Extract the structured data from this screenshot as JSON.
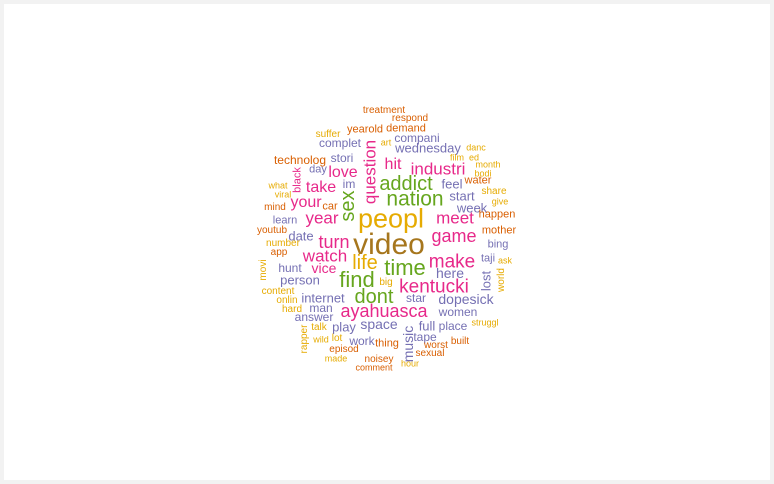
{
  "colors": {
    "orange": "#d95f02",
    "purple": "#7570b3",
    "pink": "#e7298a",
    "green": "#66a61e",
    "gold": "#e6ab02",
    "brown": "#a6761d"
  },
  "words": [
    {
      "text": "treatment",
      "color": "#d95f02"
    },
    {
      "text": "respond",
      "color": "#d95f02"
    },
    {
      "text": "yearold",
      "color": "#d95f02"
    },
    {
      "text": "demand",
      "color": "#d95f02"
    },
    {
      "text": "suffer",
      "color": "#e6ab02"
    },
    {
      "text": "compani",
      "color": "#7570b3"
    },
    {
      "text": "complet",
      "color": "#7570b3"
    },
    {
      "text": "art",
      "color": "#e6ab02"
    },
    {
      "text": "wednesday",
      "color": "#7570b3"
    },
    {
      "text": "danc",
      "color": "#e6ab02"
    },
    {
      "text": "technolog",
      "color": "#d95f02"
    },
    {
      "text": "stori",
      "color": "#7570b3"
    },
    {
      "text": "question",
      "color": "#e7298a"
    },
    {
      "text": "hit",
      "color": "#e7298a"
    },
    {
      "text": "film",
      "color": "#e6ab02"
    },
    {
      "text": "ed",
      "color": "#e6ab02"
    },
    {
      "text": "month",
      "color": "#e6ab02"
    },
    {
      "text": "day",
      "color": "#7570b3"
    },
    {
      "text": "black",
      "color": "#e7298a"
    },
    {
      "text": "love",
      "color": "#e7298a"
    },
    {
      "text": "industri",
      "color": "#e7298a"
    },
    {
      "text": "bodi",
      "color": "#e6ab02"
    },
    {
      "text": "what",
      "color": "#e6ab02"
    },
    {
      "text": "take",
      "color": "#e7298a"
    },
    {
      "text": "im",
      "color": "#7570b3"
    },
    {
      "text": "addict",
      "color": "#66a61e"
    },
    {
      "text": "feel",
      "color": "#7570b3"
    },
    {
      "text": "water",
      "color": "#d95f02"
    },
    {
      "text": "viral",
      "color": "#e6ab02"
    },
    {
      "text": "share",
      "color": "#e6ab02"
    },
    {
      "text": "your",
      "color": "#e7298a"
    },
    {
      "text": "car",
      "color": "#d95f02"
    },
    {
      "text": "sex",
      "color": "#66a61e"
    },
    {
      "text": "nation",
      "color": "#66a61e"
    },
    {
      "text": "start",
      "color": "#7570b3"
    },
    {
      "text": "give",
      "color": "#e6ab02"
    },
    {
      "text": "mind",
      "color": "#d95f02"
    },
    {
      "text": "week",
      "color": "#7570b3"
    },
    {
      "text": "happen",
      "color": "#d95f02"
    },
    {
      "text": "year",
      "color": "#e7298a"
    },
    {
      "text": "peopl",
      "color": "#e6ab02"
    },
    {
      "text": "meet",
      "color": "#e7298a"
    },
    {
      "text": "learn",
      "color": "#7570b3"
    },
    {
      "text": "youtub",
      "color": "#d95f02"
    },
    {
      "text": "mother",
      "color": "#d95f02"
    },
    {
      "text": "date",
      "color": "#7570b3"
    },
    {
      "text": "turn",
      "color": "#e7298a"
    },
    {
      "text": "game",
      "color": "#e7298a"
    },
    {
      "text": "number",
      "color": "#e6ab02"
    },
    {
      "text": "video",
      "color": "#a6761d"
    },
    {
      "text": "bing",
      "color": "#7570b3"
    },
    {
      "text": "app",
      "color": "#d95f02"
    },
    {
      "text": "watch",
      "color": "#e7298a"
    },
    {
      "text": "life",
      "color": "#e6ab02"
    },
    {
      "text": "taji",
      "color": "#7570b3"
    },
    {
      "text": "ask",
      "color": "#e6ab02"
    },
    {
      "text": "movi",
      "color": "#e6ab02"
    },
    {
      "text": "hunt",
      "color": "#7570b3"
    },
    {
      "text": "vice",
      "color": "#e7298a"
    },
    {
      "text": "time",
      "color": "#66a61e"
    },
    {
      "text": "make",
      "color": "#e7298a"
    },
    {
      "text": "here",
      "color": "#7570b3"
    },
    {
      "text": "lost",
      "color": "#7570b3"
    },
    {
      "text": "world",
      "color": "#e6ab02"
    },
    {
      "text": "person",
      "color": "#7570b3"
    },
    {
      "text": "find",
      "color": "#66a61e"
    },
    {
      "text": "big",
      "color": "#e6ab02"
    },
    {
      "text": "kentucki",
      "color": "#e7298a"
    },
    {
      "text": "content",
      "color": "#e6ab02"
    },
    {
      "text": "internet",
      "color": "#7570b3"
    },
    {
      "text": "dont",
      "color": "#66a61e"
    },
    {
      "text": "star",
      "color": "#7570b3"
    },
    {
      "text": "dopesick",
      "color": "#7570b3"
    },
    {
      "text": "onlin",
      "color": "#e6ab02"
    },
    {
      "text": "man",
      "color": "#7570b3"
    },
    {
      "text": "hard",
      "color": "#e6ab02"
    },
    {
      "text": "ayahuasca",
      "color": "#e7298a"
    },
    {
      "text": "women",
      "color": "#7570b3"
    },
    {
      "text": "answer",
      "color": "#7570b3"
    },
    {
      "text": "struggl",
      "color": "#e6ab02"
    },
    {
      "text": "talk",
      "color": "#e6ab02"
    },
    {
      "text": "play",
      "color": "#7570b3"
    },
    {
      "text": "space",
      "color": "#7570b3"
    },
    {
      "text": "full",
      "color": "#7570b3"
    },
    {
      "text": "place",
      "color": "#7570b3"
    },
    {
      "text": "rapper",
      "color": "#e6ab02"
    },
    {
      "text": "tape",
      "color": "#7570b3"
    },
    {
      "text": "wild",
      "color": "#e6ab02"
    },
    {
      "text": "lot",
      "color": "#e6ab02"
    },
    {
      "text": "work",
      "color": "#7570b3"
    },
    {
      "text": "thing",
      "color": "#d95f02"
    },
    {
      "text": "music",
      "color": "#7570b3"
    },
    {
      "text": "built",
      "color": "#d95f02"
    },
    {
      "text": "episod",
      "color": "#d95f02"
    },
    {
      "text": "worst",
      "color": "#d95f02"
    },
    {
      "text": "made",
      "color": "#e6ab02"
    },
    {
      "text": "noisey",
      "color": "#d95f02"
    },
    {
      "text": "sexual",
      "color": "#d95f02"
    },
    {
      "text": "comment",
      "color": "#d95f02"
    },
    {
      "text": "hour",
      "color": "#e6ab02"
    }
  ]
}
